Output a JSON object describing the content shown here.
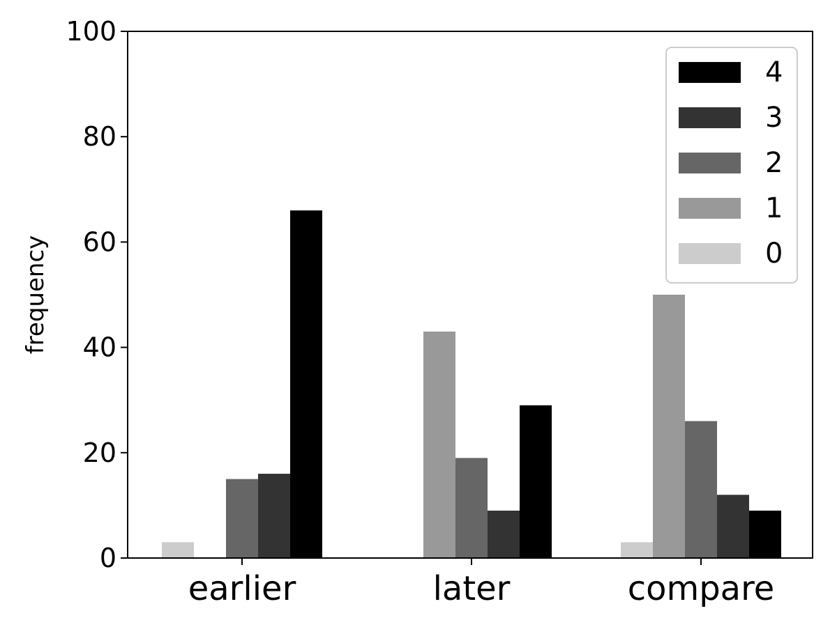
{
  "chart_data": {
    "type": "bar",
    "categories": [
      "earlier",
      "later",
      "compare"
    ],
    "series": [
      {
        "name": "0",
        "color": "#cccccc",
        "values": [
          3,
          0,
          3
        ]
      },
      {
        "name": "1",
        "color": "#999999",
        "values": [
          0,
          43,
          50
        ]
      },
      {
        "name": "2",
        "color": "#666666",
        "values": [
          15,
          19,
          26
        ]
      },
      {
        "name": "3",
        "color": "#333333",
        "values": [
          16,
          9,
          12
        ]
      },
      {
        "name": "4",
        "color": "#000000",
        "values": [
          66,
          29,
          9
        ]
      }
    ],
    "ylabel": "frequency",
    "ylim": [
      0,
      100
    ],
    "yticks": [
      "0",
      "20",
      "40",
      "60",
      "80",
      "100"
    ],
    "legend_position": "top-right",
    "legend_order": [
      "4",
      "3",
      "2",
      "1",
      "0"
    ],
    "grid": false
  }
}
